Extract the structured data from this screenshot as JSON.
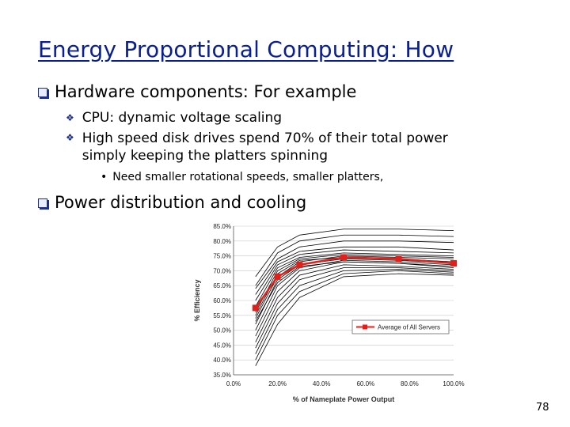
{
  "slide": {
    "title": "Energy Proportional Computing: How",
    "page_number": "78",
    "bullets": [
      {
        "text": "Hardware components: For example",
        "icon": "square-bullet-icon"
      },
      {
        "text": "CPU: dynamic voltage scaling",
        "icon": "diamond-bullet-icon"
      },
      {
        "text": "High speed disk drives spend 70% of their total power simply keeping the platters spinning",
        "icon": "diamond-bullet-icon"
      },
      {
        "text": "Need smaller rotational speeds, smaller platters,",
        "icon": "dot-bullet-icon"
      },
      {
        "text": "Power distribution and cooling",
        "icon": "square-bullet-icon"
      }
    ]
  },
  "chart_data": {
    "type": "line",
    "xlabel": "% of Nameplate Power Output",
    "ylabel": "% Efficiency",
    "xlim": [
      0,
      100
    ],
    "ylim": [
      35,
      85
    ],
    "x_ticks": [
      "0.0%",
      "20.0%",
      "40.0%",
      "60.0%",
      "80.0%",
      "100.0%"
    ],
    "y_ticks": [
      "85.0%",
      "80.0%",
      "75.0%",
      "70.0%",
      "65.0%",
      "60.0%",
      "55.0%",
      "50.0%",
      "45.0%",
      "40.0%",
      "35.0%"
    ],
    "grid": true,
    "legend": {
      "position": "lower-right",
      "entries": [
        "Average of All Servers"
      ]
    },
    "colors": {
      "average": "#e0201b",
      "servers": "#000000"
    },
    "highlight_series": {
      "name": "Average of All Servers",
      "x": [
        10,
        20,
        30,
        50,
        75,
        100
      ],
      "y": [
        57.5,
        68,
        72,
        74.5,
        74,
        72.5
      ]
    },
    "server_series": [
      {
        "x": [
          10,
          20,
          30,
          50,
          75,
          100
        ],
        "y": [
          68,
          78,
          82,
          84,
          84,
          83.5
        ]
      },
      {
        "x": [
          10,
          20,
          30,
          50,
          75,
          100
        ],
        "y": [
          65,
          76,
          80,
          82,
          82,
          81.5
        ]
      },
      {
        "x": [
          10,
          20,
          30,
          50,
          75,
          100
        ],
        "y": [
          64,
          74,
          78,
          80,
          80,
          79.5
        ]
      },
      {
        "x": [
          10,
          20,
          30,
          50,
          75,
          100
        ],
        "y": [
          62,
          73,
          76.5,
          78,
          78,
          77
        ]
      },
      {
        "x": [
          10,
          20,
          30,
          50,
          75,
          100
        ],
        "y": [
          60,
          72,
          75.5,
          77,
          76.5,
          76
        ]
      },
      {
        "x": [
          10,
          20,
          30,
          50,
          75,
          100
        ],
        "y": [
          58,
          71,
          74.5,
          76,
          75.5,
          75
        ]
      },
      {
        "x": [
          10,
          20,
          30,
          50,
          75,
          100
        ],
        "y": [
          56,
          70,
          74,
          75.5,
          75,
          74.5
        ]
      },
      {
        "x": [
          10,
          20,
          30,
          50,
          75,
          100
        ],
        "y": [
          54,
          68,
          73,
          75,
          74.5,
          74
        ]
      },
      {
        "x": [
          10,
          20,
          30,
          50,
          75,
          100
        ],
        "y": [
          55,
          69,
          73.5,
          74.5,
          74,
          73
        ]
      },
      {
        "x": [
          10,
          20,
          30,
          50,
          75,
          100
        ],
        "y": [
          52,
          67,
          72,
          74,
          73.5,
          72.5
        ]
      },
      {
        "x": [
          10,
          20,
          30,
          50,
          75,
          100
        ],
        "y": [
          50,
          65,
          71,
          73.5,
          73,
          72
        ]
      },
      {
        "x": [
          10,
          20,
          30,
          50,
          75,
          100
        ],
        "y": [
          53,
          66,
          71.5,
          73,
          72.5,
          71.5
        ]
      },
      {
        "x": [
          10,
          20,
          30,
          50,
          75,
          100
        ],
        "y": [
          48,
          63,
          70,
          73,
          72.5,
          71
        ]
      },
      {
        "x": [
          10,
          20,
          30,
          50,
          75,
          100
        ],
        "y": [
          46,
          61,
          68.5,
          72,
          71.5,
          70.5
        ]
      },
      {
        "x": [
          10,
          20,
          30,
          50,
          75,
          100
        ],
        "y": [
          44,
          59,
          67,
          71,
          71,
          70
        ]
      },
      {
        "x": [
          10,
          20,
          30,
          50,
          75,
          100
        ],
        "y": [
          42,
          57,
          65,
          70,
          70.5,
          69.5
        ]
      },
      {
        "x": [
          10,
          20,
          30,
          50,
          75,
          100
        ],
        "y": [
          40,
          55,
          63,
          69,
          70,
          69
        ]
      },
      {
        "x": [
          10,
          20,
          30,
          50,
          75,
          100
        ],
        "y": [
          38,
          52,
          61,
          68,
          69,
          68.5
        ]
      }
    ]
  }
}
